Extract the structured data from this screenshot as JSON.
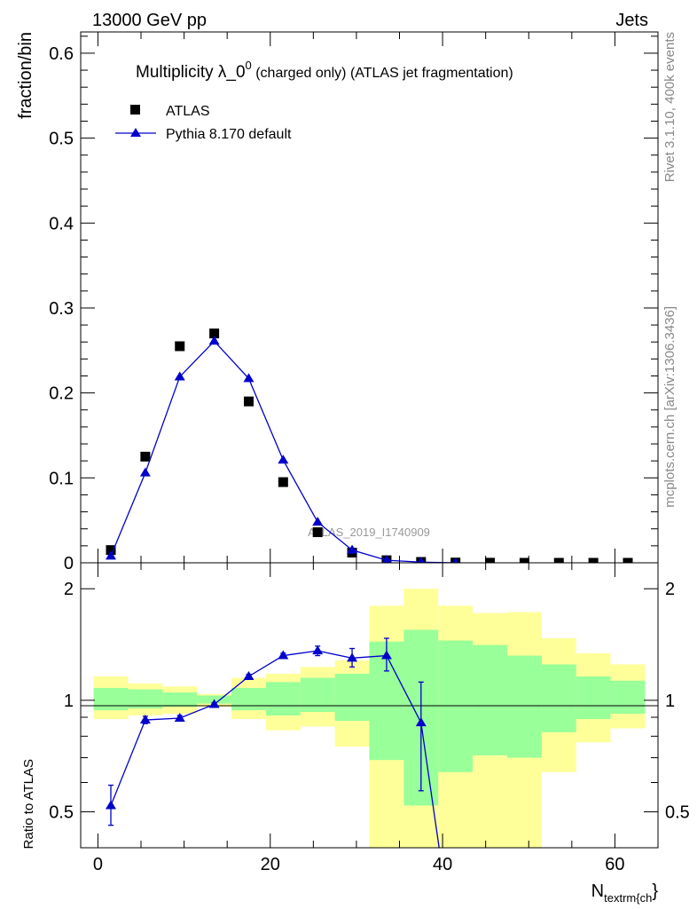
{
  "header": {
    "left": "13000 GeV pp",
    "right": "Jets"
  },
  "side_text": {
    "rivet": "Rivet 3.1.10,  400k events",
    "mcplots": "mcplots.cern.ch [arXiv:1306.3436]"
  },
  "colors": {
    "data_marker": "#000000",
    "mc_line": "#0000cc",
    "band_inner": "#99ff99",
    "band_outer": "#ffff99"
  },
  "chart_data": [
    {
      "type": "scatter",
      "title": "Multiplicity λ_0",
      "title_sup": "0",
      "title_suffix": " (charged only) (ATLAS jet fragmentation)",
      "ylabel": "fraction/bin",
      "watermark": "ATLAS_2019_I1740909",
      "xlim": [
        -2,
        65
      ],
      "ylim": [
        0,
        0.625
      ],
      "yticks": [
        0,
        0.1,
        0.2,
        0.3,
        0.4,
        0.5,
        0.6
      ],
      "ytick_labels": [
        "0",
        "0.1",
        "0.2",
        "0.3",
        "0.4",
        "0.5",
        "0.6"
      ],
      "legend_position": "top-left",
      "series": [
        {
          "name": "ATLAS",
          "marker": "square",
          "x": [
            1.5,
            5.5,
            9.5,
            13.5,
            17.5,
            21.5,
            25.5,
            29.5,
            33.5,
            37.5,
            41.5,
            45.5,
            49.5,
            53.5,
            57.5,
            61.5
          ],
          "y": [
            0.015,
            0.125,
            0.255,
            0.27,
            0.19,
            0.095,
            0.036,
            0.012,
            0.003,
            0.001,
            0.0003,
            0.0001,
            0.0,
            0.0,
            0.0,
            0.0
          ]
        },
        {
          "name": "Pythia 8.170 default",
          "marker": "triangle",
          "x": [
            1.5,
            5.5,
            9.5,
            13.5,
            17.5,
            21.5,
            25.5,
            29.5,
            33.5,
            37.5,
            41.5
          ],
          "y": [
            0.008,
            0.106,
            0.219,
            0.261,
            0.217,
            0.121,
            0.048,
            0.015,
            0.003,
            0.0008,
            0.0
          ]
        }
      ]
    },
    {
      "type": "line",
      "ylabel": "Ratio to ATLAS",
      "xlabel": "N",
      "xlabel_sub": "textrm{ch",
      "xlabel_suffix": "}",
      "xlim": [
        -2,
        65
      ],
      "ylim": [
        0.4,
        2.35
      ],
      "log_y": true,
      "xticks": [
        0,
        20,
        40,
        60
      ],
      "xtick_labels": [
        "0",
        "20",
        "40",
        "60"
      ],
      "yticks": [
        0.5,
        1,
        2
      ],
      "ytick_labels": [
        "0.5",
        "1",
        "2"
      ],
      "bin_edges": [
        -0.5,
        3.5,
        7.5,
        11.5,
        15.5,
        19.5,
        23.5,
        27.5,
        31.5,
        35.5,
        39.5,
        43.5,
        47.5,
        51.5,
        55.5,
        59.5,
        63.5
      ],
      "band_inner": [
        [
          0.94,
          1.08
        ],
        [
          0.95,
          1.07
        ],
        [
          0.96,
          1.05
        ],
        [
          0.98,
          1.03
        ],
        [
          0.94,
          1.08
        ],
        [
          0.91,
          1.12
        ],
        [
          0.93,
          1.15
        ],
        [
          0.88,
          1.18
        ],
        [
          0.69,
          1.44
        ],
        [
          0.52,
          1.55
        ],
        [
          0.64,
          1.45
        ],
        [
          0.71,
          1.41
        ],
        [
          0.7,
          1.32
        ],
        [
          0.82,
          1.25
        ],
        [
          0.89,
          1.16
        ],
        [
          0.92,
          1.13
        ]
      ],
      "band_outer": [
        [
          0.89,
          1.16
        ],
        [
          0.91,
          1.11
        ],
        [
          0.92,
          1.09
        ],
        [
          0.96,
          1.04
        ],
        [
          0.89,
          1.15
        ],
        [
          0.83,
          1.18
        ],
        [
          0.85,
          1.23
        ],
        [
          0.75,
          1.28
        ],
        [
          0.3,
          1.8
        ],
        [
          0.3,
          2.0
        ],
        [
          0.3,
          1.8
        ],
        [
          0.3,
          1.72
        ],
        [
          0.3,
          1.73
        ],
        [
          0.64,
          1.47
        ],
        [
          0.77,
          1.34
        ],
        [
          0.84,
          1.25
        ]
      ],
      "series": [
        {
          "name": "Pythia 8.170 default",
          "x": [
            1.5,
            5.5,
            9.5,
            13.5,
            17.5,
            21.5,
            25.5,
            29.5,
            33.5,
            37.5,
            39.6
          ],
          "y": [
            0.52,
            0.885,
            0.895,
            0.975,
            1.16,
            1.32,
            1.36,
            1.3,
            1.32,
            0.87,
            0.4
          ],
          "yerr_low": [
            0.06,
            0.02,
            0.015,
            0.01,
            0.015,
            0.02,
            0.04,
            0.07,
            0.12,
            0.3,
            0
          ],
          "yerr_high": [
            0.07,
            0.02,
            0.015,
            0.01,
            0.015,
            0.02,
            0.04,
            0.08,
            0.15,
            0.25,
            0
          ]
        }
      ]
    }
  ]
}
